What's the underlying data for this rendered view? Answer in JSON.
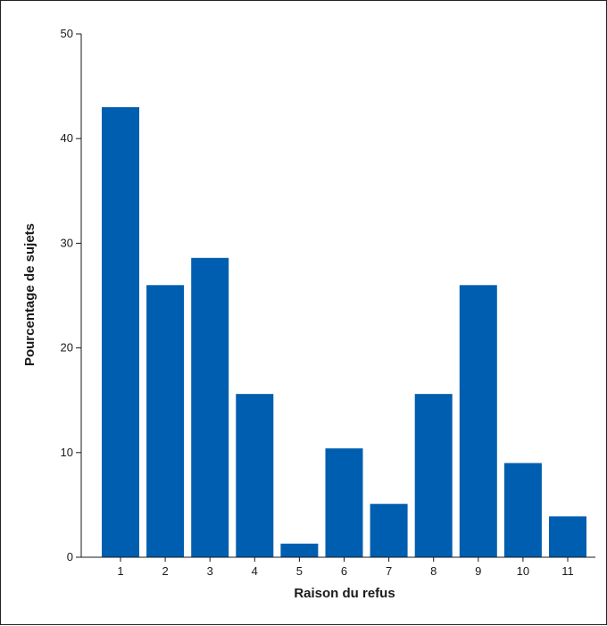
{
  "chart_data": {
    "type": "bar",
    "categories": [
      "1",
      "2",
      "3",
      "4",
      "5",
      "6",
      "7",
      "8",
      "9",
      "10",
      "11"
    ],
    "values": [
      43,
      26,
      28.6,
      15.6,
      1.3,
      10.4,
      5.1,
      15.6,
      26,
      9,
      3.9
    ],
    "xlabel": "Raison du refus",
    "ylabel": "Pourcentage de sujets",
    "ylim": [
      0,
      50
    ],
    "yticks": [
      0,
      10,
      20,
      30,
      40,
      50
    ],
    "grid": false,
    "legend": "none",
    "bar_color": "#005eb0"
  }
}
